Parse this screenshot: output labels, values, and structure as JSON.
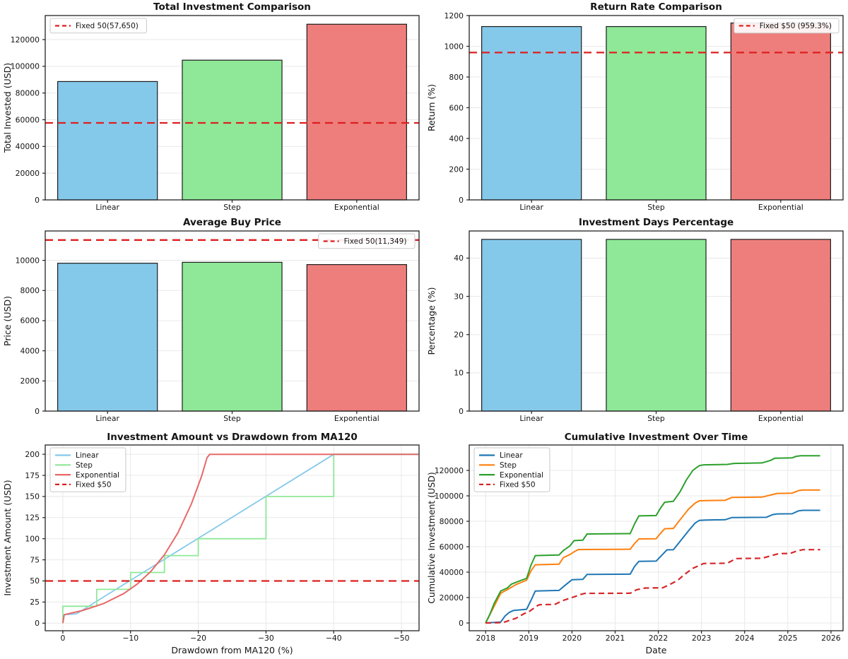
{
  "figure": {
    "background": "#ffffff",
    "grid_color": "#e8e8e8",
    "spine_color": "#222222",
    "bar_edge_color": "#1c1c1c",
    "refline_color": "#dd1f1f"
  },
  "chart_data": [
    {
      "type": "bar",
      "row": 0,
      "title": "Total Investment Comparison",
      "ylabel": "Total Invested (USD)",
      "categories": [
        "Linear",
        "Step",
        "Exponential"
      ],
      "values": [
        88600,
        104600,
        131500
      ],
      "bar_colors": [
        "#85c9ea",
        "#8ee897",
        "#ee7e7c"
      ],
      "ylim": [
        0,
        138000
      ],
      "yticks": [
        0,
        20000,
        40000,
        60000,
        80000,
        100000,
        120000
      ],
      "ytick_labels": [
        "0",
        "20000",
        "40000",
        "60000",
        "80000",
        "100000",
        "120000"
      ],
      "refline": {
        "value": 57650,
        "color": "#dd1f1f",
        "label": "Fixed 50(57,650)"
      },
      "legend": {
        "position": "upper-left",
        "entries": [
          {
            "label": "Fixed 50(57,650)",
            "color": "#dd1f1f",
            "dash": true
          }
        ]
      }
    },
    {
      "type": "bar",
      "row": 0,
      "title": "Return Rate Comparison",
      "ylabel": "Return (%)",
      "categories": [
        "Linear",
        "Step",
        "Exponential"
      ],
      "values": [
        1128.4,
        1128.4,
        1151.6
      ],
      "bar_colors": [
        "#85c9ea",
        "#8ee897",
        "#ee7e7c"
      ],
      "ylim": [
        0,
        1200
      ],
      "yticks": [
        0,
        200,
        400,
        600,
        800,
        1000,
        1200
      ],
      "ytick_labels": [
        "0",
        "200",
        "400",
        "600",
        "800",
        "1000",
        "1200"
      ],
      "refline": {
        "value": 959.3,
        "color": "#dd1f1f",
        "label": "Fixed $50 (959.3%)"
      },
      "legend": {
        "position": "upper-right",
        "entries": [
          {
            "label": "Fixed $50 (959.3%)",
            "color": "#dd1f1f",
            "dash": true
          }
        ]
      }
    },
    {
      "type": "bar",
      "row": 1,
      "title": "Average Buy Price",
      "ylabel": "Price (USD)",
      "categories": [
        "Linear",
        "Step",
        "Exponential"
      ],
      "values": [
        9810,
        9870,
        9720
      ],
      "bar_colors": [
        "#85c9ea",
        "#8ee897",
        "#ee7e7c"
      ],
      "ylim": [
        0,
        11950
      ],
      "yticks": [
        0,
        2000,
        4000,
        6000,
        8000,
        10000
      ],
      "ytick_labels": [
        "0",
        "2000",
        "4000",
        "6000",
        "8000",
        "10000"
      ],
      "refline": {
        "value": 11349,
        "color": "#dd1f1f",
        "label": "Fixed 50(11,349)"
      },
      "legend": {
        "position": "upper-right",
        "entries": [
          {
            "label": "Fixed 50(11,349)",
            "color": "#dd1f1f",
            "dash": true
          }
        ]
      }
    },
    {
      "type": "bar",
      "row": 1,
      "title": "Investment Days Percentage",
      "ylabel": "Percentage (%)",
      "categories": [
        "Linear",
        "Step",
        "Exponential"
      ],
      "values": [
        44.9,
        44.9,
        44.9
      ],
      "bar_colors": [
        "#85c9ea",
        "#8ee897",
        "#ee7e7c"
      ],
      "ylim": [
        0,
        47.1
      ],
      "yticks": [
        0,
        10,
        20,
        30,
        40
      ],
      "ytick_labels": [
        "0",
        "10",
        "20",
        "30",
        "40"
      ]
    },
    {
      "type": "line",
      "row": 2,
      "title": "Investment Amount vs Drawdown from MA120",
      "xlabel": "Drawdown from MA120 (%)",
      "ylabel": "Investment Amount (USD)",
      "xlim": [
        2.6,
        -52.6
      ],
      "ylim": [
        -9,
        211
      ],
      "xticks": [
        0,
        -10,
        -20,
        -30,
        -40,
        -50
      ],
      "xtick_labels": [
        "0",
        "−10",
        "−20",
        "−30",
        "−40",
        "−50"
      ],
      "yticks": [
        0,
        25,
        50,
        75,
        100,
        125,
        150,
        175,
        200
      ],
      "ytick_labels": [
        "0",
        "25",
        "50",
        "75",
        "100",
        "125",
        "150",
        "175",
        "200"
      ],
      "series": [
        {
          "name": "Linear",
          "color": "#85c9ea",
          "width": 1.8,
          "points": [
            [
              0,
              0
            ],
            [
              -0.2,
              10
            ],
            [
              -2,
              11
            ],
            [
              -40,
              200
            ],
            [
              -52.5,
              200
            ]
          ]
        },
        {
          "name": "Step",
          "color": "#8ee897",
          "width": 1.8,
          "points": [
            [
              0,
              0
            ],
            [
              0,
              20
            ],
            [
              -5,
              20
            ],
            [
              -5,
              40
            ],
            [
              -10,
              40
            ],
            [
              -10,
              60
            ],
            [
              -15,
              60
            ],
            [
              -15,
              80
            ],
            [
              -20,
              80
            ],
            [
              -20,
              100
            ],
            [
              -30,
              100
            ],
            [
              -30,
              150
            ],
            [
              -40,
              150
            ],
            [
              -40,
              200
            ],
            [
              -52.5,
              200
            ]
          ]
        },
        {
          "name": "Exponential",
          "color": "#e86868",
          "width": 2,
          "points": [
            [
              0,
              0
            ],
            [
              -0.2,
              10
            ],
            [
              -3,
              15.2
            ],
            [
              -6,
              23.1
            ],
            [
              -9,
              35.1
            ],
            [
              -11,
              46.4
            ],
            [
              -13,
              61.3
            ],
            [
              -15,
              81
            ],
            [
              -17,
              107
            ],
            [
              -19,
              141.6
            ],
            [
              -20.5,
              174.3
            ],
            [
              -21.3,
              196
            ],
            [
              -21.7,
              200
            ],
            [
              -52.5,
              200
            ]
          ]
        },
        {
          "name": "Fixed $50",
          "color": "#dd1f1f",
          "width": 2.3,
          "dash": "11 7",
          "points": [
            [
              2.6,
              50
            ],
            [
              -52.6,
              50
            ]
          ]
        }
      ],
      "legend": {
        "position": "upper-left",
        "entries": [
          {
            "label": "Linear",
            "color": "#85c9ea"
          },
          {
            "label": "Step",
            "color": "#8ee897"
          },
          {
            "label": "Exponential",
            "color": "#e86868"
          },
          {
            "label": "Fixed $50",
            "color": "#dd1f1f",
            "dash": true
          }
        ]
      }
    },
    {
      "type": "line",
      "row": 2,
      "title": "Cumulative Investment Over Time",
      "xlabel": "Date",
      "ylabel": "Cumulative Investment (USD)",
      "xlim": [
        2017.62,
        2026.28
      ],
      "ylim": [
        -6100,
        140000
      ],
      "xticks": [
        2018,
        2019,
        2020,
        2021,
        2022,
        2023,
        2024,
        2025,
        2026
      ],
      "xtick_labels": [
        "2018",
        "2019",
        "2020",
        "2021",
        "2022",
        "2023",
        "2024",
        "2025",
        "2026"
      ],
      "yticks": [
        0,
        20000,
        40000,
        60000,
        80000,
        100000,
        120000
      ],
      "ytick_labels": [
        "0",
        "20000",
        "40000",
        "60000",
        "80000",
        "100000",
        "120000"
      ],
      "series": [
        {
          "name": "Linear",
          "color": "#1f77b4",
          "width": 2,
          "points": [
            [
              2018,
              0
            ],
            [
              2018.35,
              800
            ],
            [
              2018.45,
              5500
            ],
            [
              2018.55,
              8400
            ],
            [
              2018.65,
              9900
            ],
            [
              2018.95,
              10800
            ],
            [
              2019.05,
              17800
            ],
            [
              2019.15,
              25200
            ],
            [
              2019.7,
              25600
            ],
            [
              2019.85,
              29900
            ],
            [
              2020,
              34000
            ],
            [
              2020.25,
              34300
            ],
            [
              2020.35,
              38200
            ],
            [
              2021.35,
              38400
            ],
            [
              2021.45,
              44500
            ],
            [
              2021.55,
              48500
            ],
            [
              2021.95,
              48700
            ],
            [
              2022.1,
              54000
            ],
            [
              2022.2,
              57500
            ],
            [
              2022.35,
              57700
            ],
            [
              2022.5,
              64000
            ],
            [
              2022.7,
              72500
            ],
            [
              2022.85,
              78500
            ],
            [
              2022.95,
              80700
            ],
            [
              2023.1,
              81000
            ],
            [
              2023.55,
              81200
            ],
            [
              2023.7,
              82900
            ],
            [
              2024.5,
              83100
            ],
            [
              2024.65,
              85200
            ],
            [
              2024.75,
              85800
            ],
            [
              2025.1,
              85900
            ],
            [
              2025.25,
              88200
            ],
            [
              2025.35,
              88600
            ],
            [
              2025.75,
              88600
            ]
          ]
        },
        {
          "name": "Step",
          "color": "#ff7f0e",
          "width": 2,
          "points": [
            [
              2018,
              0
            ],
            [
              2018.35,
              23400
            ],
            [
              2018.5,
              26200
            ],
            [
              2018.7,
              30200
            ],
            [
              2018.95,
              33600
            ],
            [
              2019.05,
              41000
            ],
            [
              2019.15,
              45800
            ],
            [
              2019.7,
              46300
            ],
            [
              2019.8,
              51400
            ],
            [
              2019.95,
              53800
            ],
            [
              2020.05,
              56000
            ],
            [
              2020.15,
              57800
            ],
            [
              2021.35,
              58000
            ],
            [
              2021.45,
              62500
            ],
            [
              2021.55,
              66100
            ],
            [
              2021.95,
              66300
            ],
            [
              2022.05,
              70500
            ],
            [
              2022.15,
              74100
            ],
            [
              2022.35,
              74400
            ],
            [
              2022.5,
              81000
            ],
            [
              2022.7,
              89500
            ],
            [
              2022.85,
              94200
            ],
            [
              2022.95,
              96100
            ],
            [
              2023.1,
              96300
            ],
            [
              2023.55,
              96500
            ],
            [
              2023.7,
              98700
            ],
            [
              2024.4,
              99000
            ],
            [
              2024.6,
              100600
            ],
            [
              2024.75,
              101900
            ],
            [
              2025.1,
              102100
            ],
            [
              2025.25,
              104100
            ],
            [
              2025.35,
              104600
            ],
            [
              2025.75,
              104600
            ]
          ]
        },
        {
          "name": "Exponential",
          "color": "#2ca02c",
          "width": 2,
          "points": [
            [
              2018,
              0
            ],
            [
              2018.1,
              7000
            ],
            [
              2018.2,
              15500
            ],
            [
              2018.35,
              25200
            ],
            [
              2018.5,
              27500
            ],
            [
              2018.6,
              30600
            ],
            [
              2018.75,
              32600
            ],
            [
              2018.95,
              35100
            ],
            [
              2019.05,
              45500
            ],
            [
              2019.15,
              53000
            ],
            [
              2019.7,
              53500
            ],
            [
              2019.8,
              57000
            ],
            [
              2019.95,
              60500
            ],
            [
              2020.05,
              64800
            ],
            [
              2020.25,
              65100
            ],
            [
              2020.35,
              70000
            ],
            [
              2021.35,
              70300
            ],
            [
              2021.45,
              78000
            ],
            [
              2021.55,
              84200
            ],
            [
              2021.95,
              84500
            ],
            [
              2022.05,
              90300
            ],
            [
              2022.15,
              95000
            ],
            [
              2022.35,
              95700
            ],
            [
              2022.5,
              103000
            ],
            [
              2022.65,
              112500
            ],
            [
              2022.8,
              120000
            ],
            [
              2022.95,
              123800
            ],
            [
              2023.05,
              124400
            ],
            [
              2023.6,
              124700
            ],
            [
              2023.75,
              125500
            ],
            [
              2024.4,
              125900
            ],
            [
              2024.6,
              127900
            ],
            [
              2024.7,
              129600
            ],
            [
              2025.1,
              129900
            ],
            [
              2025.2,
              131100
            ],
            [
              2025.3,
              131500
            ],
            [
              2025.75,
              131500
            ]
          ]
        },
        {
          "name": "Fixed $50",
          "color": "#d62728",
          "width": 2.2,
          "dash": "8 5",
          "points": [
            [
              2018,
              0
            ],
            [
              2018.4,
              300
            ],
            [
              2018.55,
              2000
            ],
            [
              2018.7,
              3700
            ],
            [
              2018.9,
              7500
            ],
            [
              2019,
              8800
            ],
            [
              2019.2,
              13600
            ],
            [
              2019.25,
              14400
            ],
            [
              2019.6,
              14600
            ],
            [
              2019.8,
              17800
            ],
            [
              2020,
              20000
            ],
            [
              2020.2,
              22400
            ],
            [
              2020.3,
              23300
            ],
            [
              2021.35,
              23400
            ],
            [
              2021.5,
              26200
            ],
            [
              2021.7,
              27500
            ],
            [
              2022.1,
              27700
            ],
            [
              2022.25,
              30000
            ],
            [
              2022.45,
              33500
            ],
            [
              2022.6,
              38000
            ],
            [
              2022.8,
              43000
            ],
            [
              2023.05,
              46800
            ],
            [
              2023.6,
              47000
            ],
            [
              2023.8,
              50700
            ],
            [
              2024.4,
              50900
            ],
            [
              2024.6,
              52800
            ],
            [
              2024.8,
              54600
            ],
            [
              2025.05,
              54700
            ],
            [
              2025.2,
              56500
            ],
            [
              2025.35,
              57650
            ],
            [
              2025.75,
              57650
            ]
          ]
        }
      ],
      "legend": {
        "position": "upper-left",
        "entries": [
          {
            "label": "Linear",
            "color": "#1f77b4"
          },
          {
            "label": "Step",
            "color": "#ff7f0e"
          },
          {
            "label": "Exponential",
            "color": "#2ca02c"
          },
          {
            "label": "Fixed $50",
            "color": "#d62728",
            "dash": true
          }
        ]
      }
    }
  ]
}
